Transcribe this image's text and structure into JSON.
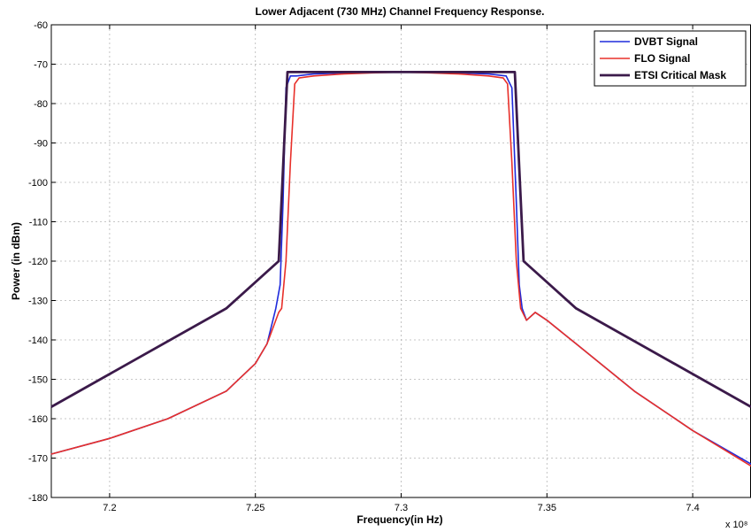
{
  "chart_data": {
    "type": "line",
    "title": "Lower Adjacent (730 MHz) Channel Frequency Response.",
    "xlabel": "Frequency(in Hz)",
    "ylabel": "Power (in dBm)",
    "x_exponent_label": "x 10⁸",
    "xlim": [
      7.18,
      7.42
    ],
    "ylim": [
      -180,
      -60
    ],
    "x_ticks": [
      7.2,
      7.25,
      7.3,
      7.35,
      7.4
    ],
    "x_tick_labels": [
      "7.2",
      "7.25",
      "7.3",
      "7.35",
      "7.4"
    ],
    "y_ticks": [
      -180,
      -170,
      -160,
      -150,
      -140,
      -130,
      -120,
      -110,
      -100,
      -90,
      -80,
      -70,
      -60
    ],
    "y_tick_labels": [
      "-180",
      "-170",
      "-160",
      "-150",
      "-140",
      "-130",
      "-120",
      "-110",
      "-100",
      "-90",
      "-80",
      "-70",
      "-60"
    ],
    "grid": true,
    "legend_position": "top-right",
    "series": [
      {
        "name": "DVBT Signal",
        "color": "#1f2bdc",
        "x": [
          7.18,
          7.2,
          7.22,
          7.24,
          7.25,
          7.254,
          7.257,
          7.2585,
          7.2595,
          7.2605,
          7.262,
          7.264,
          7.27,
          7.28,
          7.29,
          7.3,
          7.31,
          7.32,
          7.33,
          7.336,
          7.338,
          7.3395,
          7.3405,
          7.3415,
          7.343,
          7.346,
          7.35,
          7.36,
          7.38,
          7.4,
          7.42
        ],
        "y": [
          -169,
          -165,
          -160,
          -153,
          -146,
          -141,
          -132,
          -126,
          -105,
          -76,
          -73,
          -73,
          -72.5,
          -72.2,
          -72,
          -72,
          -72,
          -72.2,
          -72.5,
          -73,
          -76,
          -105,
          -126,
          -132,
          -135,
          -133,
          -135,
          -141,
          -153,
          -163,
          -171.5
        ]
      },
      {
        "name": "FLO Signal",
        "color": "#e8302a",
        "x": [
          7.18,
          7.2,
          7.22,
          7.24,
          7.25,
          7.254,
          7.258,
          7.259,
          7.2605,
          7.262,
          7.2635,
          7.265,
          7.27,
          7.28,
          7.29,
          7.3,
          7.31,
          7.32,
          7.33,
          7.335,
          7.3365,
          7.338,
          7.3395,
          7.341,
          7.343,
          7.346,
          7.35,
          7.36,
          7.38,
          7.4,
          7.42
        ],
        "y": [
          -169,
          -165,
          -160,
          -153,
          -146,
          -141,
          -133,
          -132,
          -120,
          -95,
          -75,
          -73.5,
          -73,
          -72.5,
          -72.2,
          -72,
          -72.2,
          -72.5,
          -73,
          -73.5,
          -75,
          -95,
          -120,
          -132,
          -135,
          -133,
          -135,
          -141,
          -153,
          -163,
          -172
        ]
      },
      {
        "name": "ETSI Critical Mask",
        "color": "#3b1a4a",
        "x": [
          7.18,
          7.24,
          7.258,
          7.261,
          7.339,
          7.342,
          7.36,
          7.42
        ],
        "y": [
          -157,
          -132,
          -120,
          -72,
          -72,
          -120,
          -132,
          -157
        ]
      }
    ]
  }
}
